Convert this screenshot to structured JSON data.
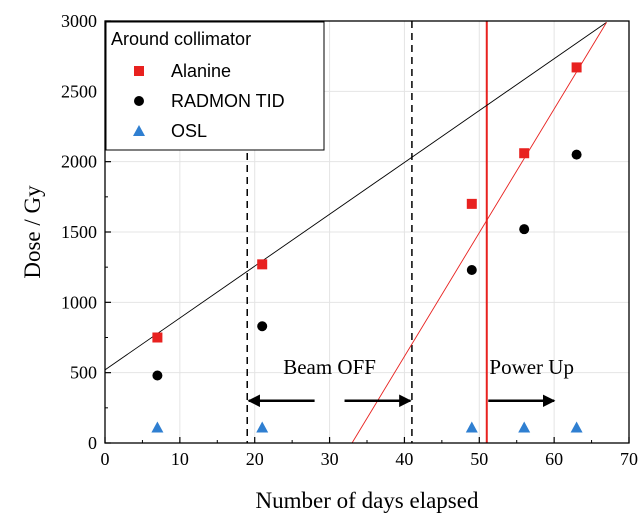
{
  "chart_data": {
    "type": "scatter",
    "xlabel": "Number of days elapsed",
    "ylabel": "Dose / Gy",
    "xlim": [
      0,
      70
    ],
    "ylim": [
      0,
      3000
    ],
    "x_ticks": [
      0,
      10,
      20,
      30,
      40,
      50,
      60,
      70
    ],
    "y_ticks": [
      0,
      500,
      1000,
      1500,
      2000,
      2500,
      3000
    ],
    "grid": true,
    "legend": {
      "title": "Around collimator",
      "position": "top-left"
    },
    "series": [
      {
        "name": "Alanine",
        "marker": "square",
        "color": "#e8211f",
        "points": [
          [
            7,
            750
          ],
          [
            21,
            1270
          ],
          [
            49,
            1700
          ],
          [
            56,
            2060
          ],
          [
            63,
            2670
          ]
        ]
      },
      {
        "name": "RADMON TID",
        "marker": "circle",
        "color": "#000000",
        "points": [
          [
            7,
            480
          ],
          [
            21,
            830
          ],
          [
            49,
            1230
          ],
          [
            56,
            1520
          ],
          [
            63,
            2050
          ]
        ]
      },
      {
        "name": "OSL",
        "marker": "triangle",
        "color": "#2f7fd1",
        "points": [
          [
            7,
            110
          ],
          [
            21,
            110
          ],
          [
            49,
            110
          ],
          [
            56,
            110
          ],
          [
            63,
            110
          ]
        ]
      }
    ],
    "fit_lines": [
      {
        "color": "#000000",
        "from": [
          0,
          520
        ],
        "to": [
          67,
          2990
        ]
      },
      {
        "color": "#e8211f",
        "from": [
          33,
          0
        ],
        "to": [
          67,
          2990
        ]
      }
    ],
    "vertical_lines": [
      {
        "x": 19,
        "style": "dashed",
        "color": "#000000"
      },
      {
        "x": 41,
        "style": "dashed",
        "color": "#000000"
      },
      {
        "x": 51,
        "style": "solid",
        "color": "#e8211f"
      }
    ],
    "annotations": [
      {
        "text": "Beam OFF",
        "x": 30,
        "y": 490
      },
      {
        "text": "Power Up",
        "x": 57,
        "y": 490
      }
    ],
    "arrows": [
      {
        "from": [
          28,
          300
        ],
        "to": [
          19.2,
          300
        ]
      },
      {
        "from": [
          32,
          300
        ],
        "to": [
          40.8,
          300
        ]
      },
      {
        "from": [
          51.2,
          300
        ],
        "to": [
          60,
          300
        ]
      }
    ]
  }
}
